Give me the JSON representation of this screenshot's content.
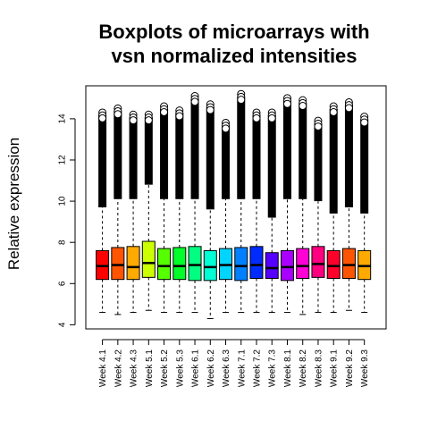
{
  "chart_data": {
    "type": "boxplot",
    "title_line1": "Boxplots of microarrays with",
    "title_line2": "vsn normalized intensities",
    "ylabel": "Relative expression",
    "xlabel": "",
    "ylim": [
      3.8,
      15.6
    ],
    "yticks": [
      4,
      6,
      8,
      10,
      12,
      14
    ],
    "grid": false,
    "legend": "none",
    "categories": [
      "Week 4.1",
      "Week 4.2",
      "Week 4.3",
      "Week 5.1",
      "Week 5.2",
      "Week 5.3",
      "Week 6.1",
      "Week 6.2",
      "Week 6.3",
      "Week 7.1",
      "Week 7.2",
      "Week 7.3",
      "Week 8.1",
      "Week 8.2",
      "Week 8.3",
      "Week 9.1",
      "Week 9.2",
      "Week 9.3"
    ],
    "colors": [
      "#ff0000",
      "#ff5500",
      "#ffaa00",
      "#ccff00",
      "#55ff00",
      "#00ff2a",
      "#00ff80",
      "#00ffd4",
      "#00d4ff",
      "#0080ff",
      "#002bff",
      "#5500ff",
      "#aa00ff",
      "#ff00d4",
      "#ff0080",
      "#ff002b",
      "#ff5500",
      "#ffaa00"
    ],
    "boxes": [
      {
        "min": 4.6,
        "q1": 6.2,
        "median": 6.85,
        "q3": 7.6,
        "upper_whisker": 9.7,
        "max_outlier": 14.3
      },
      {
        "min": 4.5,
        "q1": 6.2,
        "median": 6.9,
        "q3": 7.75,
        "upper_whisker": 10.1,
        "max_outlier": 14.5
      },
      {
        "min": 4.6,
        "q1": 6.2,
        "median": 6.8,
        "q3": 7.8,
        "upper_whisker": 10.1,
        "max_outlier": 14.2
      },
      {
        "min": 4.7,
        "q1": 6.3,
        "median": 7.0,
        "q3": 8.05,
        "upper_whisker": 10.8,
        "max_outlier": 14.2
      },
      {
        "min": 4.6,
        "q1": 6.2,
        "median": 6.85,
        "q3": 7.7,
        "upper_whisker": 10.1,
        "max_outlier": 14.6
      },
      {
        "min": 4.6,
        "q1": 6.2,
        "median": 6.85,
        "q3": 7.75,
        "upper_whisker": 10.1,
        "max_outlier": 14.4
      },
      {
        "min": 4.6,
        "q1": 6.15,
        "median": 6.9,
        "q3": 7.8,
        "upper_whisker": 10.1,
        "max_outlier": 15.1
      },
      {
        "min": 4.3,
        "q1": 6.15,
        "median": 6.8,
        "q3": 7.6,
        "upper_whisker": 9.6,
        "max_outlier": 14.7
      },
      {
        "min": 4.6,
        "q1": 6.2,
        "median": 6.9,
        "q3": 7.7,
        "upper_whisker": 10.1,
        "max_outlier": 13.8
      },
      {
        "min": 4.6,
        "q1": 6.15,
        "median": 6.85,
        "q3": 7.75,
        "upper_whisker": 10.1,
        "max_outlier": 15.2
      },
      {
        "min": 4.6,
        "q1": 6.25,
        "median": 6.9,
        "q3": 7.8,
        "upper_whisker": 10.1,
        "max_outlier": 14.3
      },
      {
        "min": 4.6,
        "q1": 6.25,
        "median": 6.75,
        "q3": 7.5,
        "upper_whisker": 9.2,
        "max_outlier": 14.3
      },
      {
        "min": 4.6,
        "q1": 6.15,
        "median": 6.8,
        "q3": 7.6,
        "upper_whisker": 10.1,
        "max_outlier": 15.0
      },
      {
        "min": 4.5,
        "q1": 6.25,
        "median": 6.85,
        "q3": 7.7,
        "upper_whisker": 10.1,
        "max_outlier": 14.9
      },
      {
        "min": 4.6,
        "q1": 6.3,
        "median": 6.95,
        "q3": 7.8,
        "upper_whisker": 10.0,
        "max_outlier": 13.9
      },
      {
        "min": 4.6,
        "q1": 6.25,
        "median": 6.85,
        "q3": 7.6,
        "upper_whisker": 9.4,
        "max_outlier": 14.6
      },
      {
        "min": 4.7,
        "q1": 6.25,
        "median": 6.9,
        "q3": 7.7,
        "upper_whisker": 9.7,
        "max_outlier": 14.8
      },
      {
        "min": 4.6,
        "q1": 6.2,
        "median": 6.85,
        "q3": 7.6,
        "upper_whisker": 9.4,
        "max_outlier": 14.1
      }
    ]
  }
}
